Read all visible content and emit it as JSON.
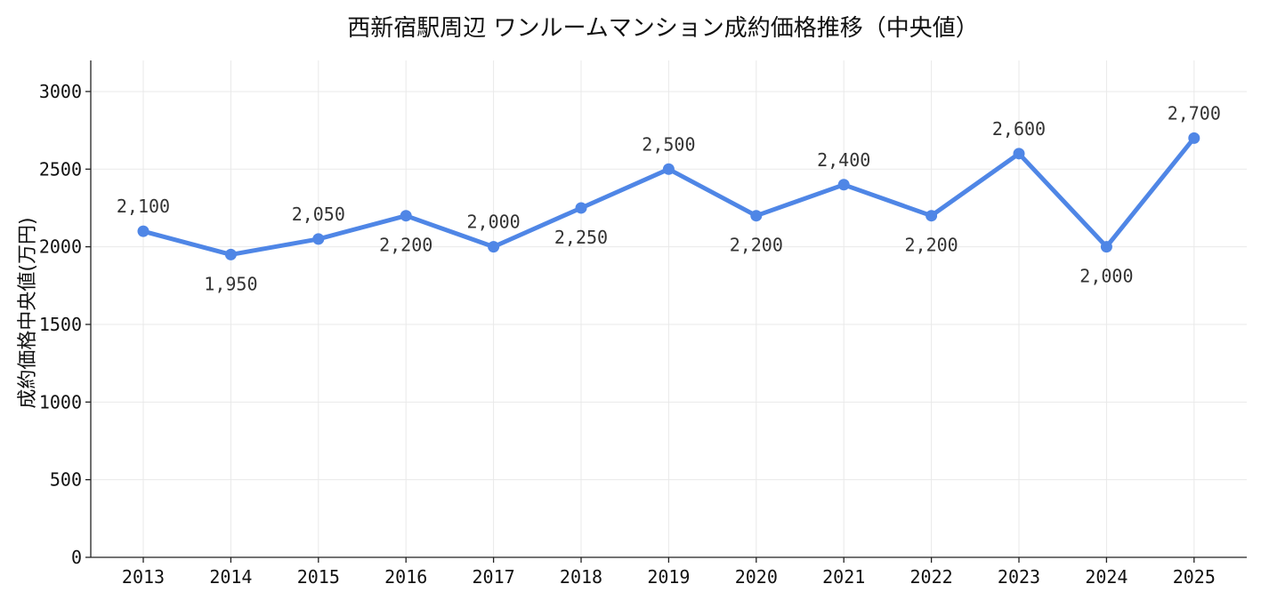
{
  "chart_data": {
    "type": "line",
    "title": "西新宿駅周辺 ワンルームマンション成約価格推移（中央値）",
    "xlabel": "",
    "ylabel": "成約価格中央値(万円)",
    "categories": [
      "2013",
      "2014",
      "2015",
      "2016",
      "2017",
      "2018",
      "2019",
      "2020",
      "2021",
      "2022",
      "2023",
      "2024",
      "2025"
    ],
    "series": [
      {
        "values": [
          2100,
          1950,
          2050,
          2200,
          2000,
          2250,
          2500,
          2200,
          2400,
          2200,
          2600,
          2000,
          2700
        ],
        "data_labels": [
          "2,100",
          "1,950",
          "2,050",
          "2,200",
          "2,000",
          "2,250",
          "2,500",
          "2,200",
          "2,400",
          "2,200",
          "2,600",
          "2,000",
          "2,700"
        ],
        "label_placement": [
          "above",
          "below",
          "above",
          "below",
          "above",
          "below",
          "above",
          "below",
          "above",
          "below",
          "above",
          "below",
          "above"
        ]
      }
    ],
    "ylim": [
      0,
      3200
    ],
    "yticks": [
      0,
      500,
      1000,
      1500,
      2000,
      2500,
      3000
    ],
    "grid": true,
    "line_color": "#4f86e6"
  }
}
